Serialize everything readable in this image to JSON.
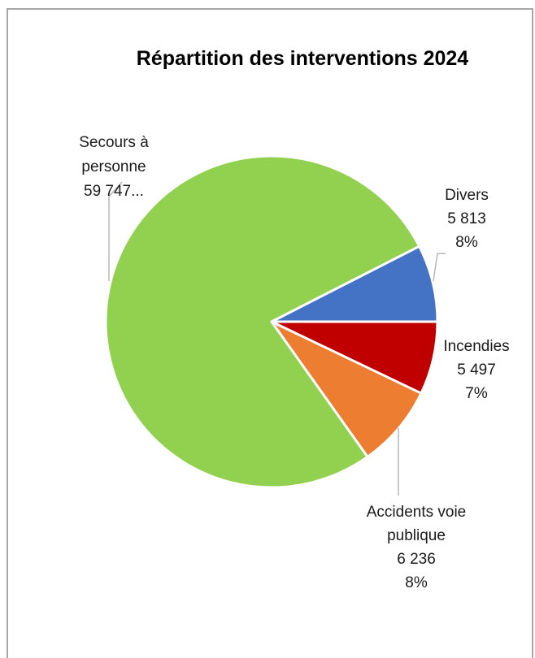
{
  "chart_data": {
    "type": "pie",
    "title": "Répartition des interventions 2024",
    "slices": [
      {
        "key": "divers",
        "name": "Divers",
        "value": 5813,
        "value_label": "5 813",
        "percent_label": "8%",
        "color": "#4472c4"
      },
      {
        "key": "incendies",
        "name": "Incendies",
        "value": 5497,
        "value_label": "5 497",
        "percent_label": "7%",
        "color": "#c00000"
      },
      {
        "key": "avp",
        "name": "Accidents voie publique",
        "value": 6236,
        "value_label": "6 236",
        "percent_label": "8%",
        "color": "#ed7d31"
      },
      {
        "key": "secours",
        "name": "Secours à personne",
        "value": 59747,
        "value_label": "59 747...",
        "percent_label": "",
        "color": "#92d050"
      }
    ],
    "legend": "none"
  },
  "labels": {
    "secours_line1": "Secours à",
    "secours_line2": "personne",
    "secours_line3": "59 747...",
    "divers_line1": "Divers",
    "divers_line2": "5 813",
    "divers_line3": "8%",
    "incendies_line1": "Incendies",
    "incendies_line2": "5 497",
    "incendies_line3": "7%",
    "avp_line1": "Accidents voie",
    "avp_line2": "publique",
    "avp_line3": "6 236",
    "avp_line4": "8%"
  }
}
